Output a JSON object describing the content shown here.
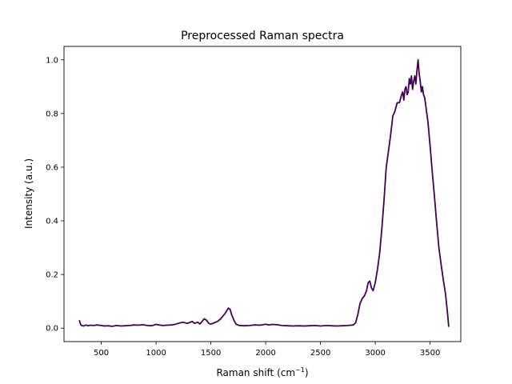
{
  "chart_data": {
    "type": "line",
    "title": "Preprocessed Raman spectra",
    "xlabel_main": "Raman shift (cm",
    "xlabel_sup": "−1",
    "xlabel_close": ")",
    "ylabel": "Intensity (a.u.)",
    "xlim": [
      160,
      3780
    ],
    "ylim": [
      -0.05,
      1.05
    ],
    "xticks": [
      500,
      1000,
      1500,
      2000,
      2500,
      3000,
      3500
    ],
    "xtick_labels": [
      "500",
      "1000",
      "1500",
      "2000",
      "2500",
      "3000",
      "3500"
    ],
    "yticks": [
      0.0,
      0.2,
      0.4,
      0.6,
      0.8,
      1.0
    ],
    "ytick_labels": [
      "0.0",
      "0.2",
      "0.4",
      "0.6",
      "0.8",
      "1.0"
    ],
    "grid": false,
    "color": "#440154",
    "series": [
      {
        "x": [
          300,
          310,
          320,
          340,
          360,
          380,
          400,
          430,
          460,
          500,
          530,
          560,
          600,
          640,
          680,
          720,
          760,
          800,
          840,
          880,
          920,
          960,
          1000,
          1030,
          1060,
          1100,
          1140,
          1180,
          1220,
          1250,
          1280,
          1300,
          1330,
          1350,
          1380,
          1400,
          1420,
          1440,
          1460,
          1480,
          1500,
          1530,
          1560,
          1590,
          1610,
          1630,
          1645,
          1660,
          1675,
          1690,
          1710,
          1730,
          1760,
          1800,
          1850,
          1900,
          1950,
          2000,
          2030,
          2060,
          2100,
          2150,
          2200,
          2250,
          2300,
          2350,
          2400,
          2450,
          2500,
          2550,
          2600,
          2650,
          2700,
          2750,
          2800,
          2820,
          2840,
          2860,
          2880,
          2900,
          2920,
          2935,
          2950,
          2965,
          2980,
          3000,
          3020,
          3040,
          3060,
          3080,
          3100,
          3120,
          3140,
          3160,
          3180,
          3200,
          3220,
          3240,
          3250,
          3260,
          3270,
          3280,
          3290,
          3300,
          3310,
          3320,
          3330,
          3340,
          3350,
          3360,
          3370,
          3380,
          3390,
          3400,
          3410,
          3420,
          3430,
          3440,
          3450,
          3460,
          3470,
          3480,
          3500,
          3520,
          3540,
          3560,
          3580,
          3600,
          3620,
          3640,
          3660,
          3670
        ],
        "y": [
          0.03,
          0.015,
          0.01,
          0.008,
          0.012,
          0.009,
          0.011,
          0.01,
          0.012,
          0.01,
          0.008,
          0.009,
          0.007,
          0.01,
          0.008,
          0.009,
          0.01,
          0.012,
          0.011,
          0.013,
          0.01,
          0.009,
          0.014,
          0.012,
          0.01,
          0.011,
          0.012,
          0.015,
          0.02,
          0.022,
          0.018,
          0.02,
          0.025,
          0.018,
          0.022,
          0.016,
          0.025,
          0.035,
          0.03,
          0.018,
          0.015,
          0.02,
          0.025,
          0.035,
          0.045,
          0.055,
          0.065,
          0.075,
          0.07,
          0.05,
          0.03,
          0.015,
          0.01,
          0.009,
          0.01,
          0.012,
          0.011,
          0.015,
          0.012,
          0.014,
          0.013,
          0.01,
          0.009,
          0.008,
          0.009,
          0.008,
          0.009,
          0.01,
          0.008,
          0.01,
          0.009,
          0.008,
          0.009,
          0.01,
          0.012,
          0.02,
          0.05,
          0.09,
          0.11,
          0.12,
          0.14,
          0.17,
          0.175,
          0.15,
          0.14,
          0.17,
          0.22,
          0.28,
          0.37,
          0.48,
          0.6,
          0.66,
          0.72,
          0.79,
          0.81,
          0.84,
          0.84,
          0.87,
          0.88,
          0.85,
          0.89,
          0.9,
          0.87,
          0.88,
          0.93,
          0.91,
          0.94,
          0.89,
          0.92,
          0.94,
          0.91,
          0.96,
          1.0,
          0.95,
          0.92,
          0.88,
          0.9,
          0.87,
          0.86,
          0.83,
          0.8,
          0.77,
          0.68,
          0.58,
          0.49,
          0.39,
          0.3,
          0.24,
          0.18,
          0.13,
          0.05,
          0.005
        ]
      }
    ]
  }
}
